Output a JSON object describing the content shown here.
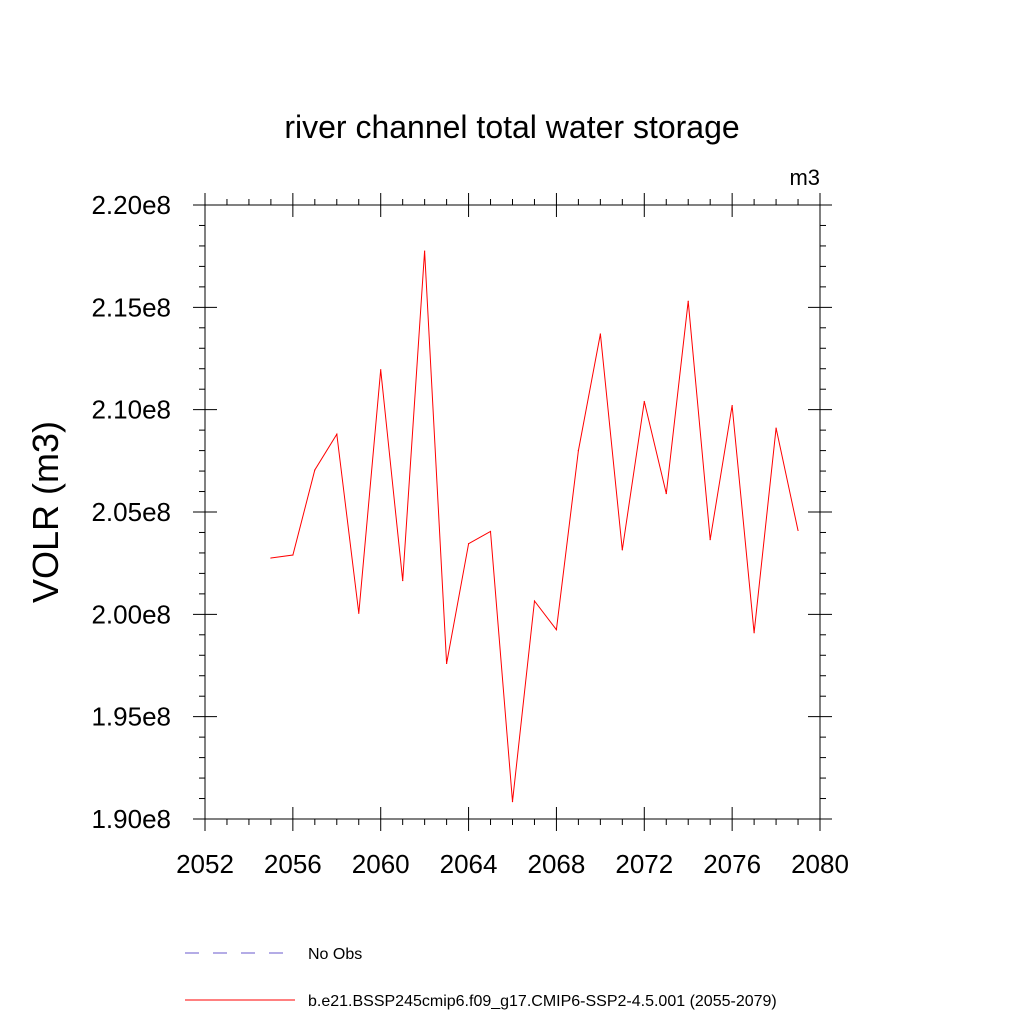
{
  "chart_data": {
    "type": "line",
    "title": "river channel total water storage",
    "units": "m3",
    "xlabel": "",
    "ylabel": "VOLR  (m3)",
    "xlim": [
      2052,
      2080
    ],
    "ylim": [
      190000000,
      220000000
    ],
    "x_ticks": [
      2052,
      2056,
      2060,
      2064,
      2068,
      2072,
      2076,
      2080
    ],
    "x_tick_labels": [
      "2052",
      "2056",
      "2060",
      "2064",
      "2068",
      "2072",
      "2076",
      "2080"
    ],
    "y_ticks": [
      190000000,
      195000000,
      200000000,
      205000000,
      210000000,
      215000000,
      220000000
    ],
    "y_tick_labels": [
      "1.90e8",
      "1.95e8",
      "2.00e8",
      "2.05e8",
      "2.10e8",
      "2.15e8",
      "2.20e8"
    ],
    "grid": false,
    "legend_position": "bottom",
    "series": [
      {
        "name": "b.e21.BSSP245cmip6.f09_g17.CMIP6-SSP2-4.5.001 (2055-2079)",
        "color": "#ff0000",
        "style": "solid",
        "x": [
          2055,
          2056,
          2057,
          2058,
          2059,
          2060,
          2061,
          2062,
          2063,
          2064,
          2065,
          2066,
          2067,
          2068,
          2069,
          2070,
          2071,
          2072,
          2073,
          2074,
          2075,
          2076,
          2077,
          2078,
          2079
        ],
        "y": [
          202750000,
          202900000,
          207050000,
          208800000,
          200050000,
          211950000,
          201650000,
          217750000,
          197600000,
          203450000,
          204050000,
          190850000,
          200650000,
          199250000,
          208000000,
          213700000,
          203150000,
          210400000,
          205900000,
          215300000,
          203650000,
          210200000,
          199100000,
          209100000,
          204100000
        ]
      }
    ],
    "legend": [
      {
        "label": "No Obs",
        "color": "#6a5acd",
        "style": "dashed"
      },
      {
        "label": "b.e21.BSSP245cmip6.f09_g17.CMIP6-SSP2-4.5.001 (2055-2079)",
        "color": "#ff0000",
        "style": "solid"
      }
    ]
  }
}
